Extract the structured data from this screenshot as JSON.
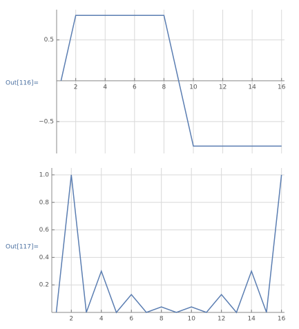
{
  "chart_data": [
    {
      "type": "line",
      "output_label": "Out[116]=",
      "x": [
        1,
        2,
        3,
        4,
        5,
        6,
        7,
        8,
        9,
        10,
        11,
        12,
        13,
        14,
        15,
        16
      ],
      "series": [
        {
          "color": "#5a7db1",
          "values": [
            0,
            0.8,
            0.8,
            0.8,
            0.8,
            0.8,
            0.8,
            0.8,
            0,
            -0.8,
            -0.8,
            -0.8,
            -0.8,
            -0.8,
            -0.8,
            -0.8
          ]
        }
      ],
      "xlim": [
        0.7,
        16.2
      ],
      "ylim": [
        -0.89,
        0.87
      ],
      "xticks": [
        2,
        4,
        6,
        8,
        10,
        12,
        14,
        16
      ],
      "yticks": [
        0.5,
        {
          "value": -0.5,
          "label": "−0.5"
        }
      ],
      "grid": true
    },
    {
      "type": "line",
      "output_label": "Out[117]=",
      "x": [
        1,
        2,
        3,
        4,
        5,
        6,
        7,
        8,
        9,
        10,
        11,
        12,
        13,
        14,
        15,
        16
      ],
      "series": [
        {
          "color": "#5a7db1",
          "values": [
            0,
            1.0,
            0,
            0.3,
            0,
            0.13,
            0,
            0.04,
            0,
            0.04,
            0,
            0.13,
            0,
            0.3,
            0,
            1.0
          ]
        }
      ],
      "xlim": [
        0.7,
        16.2
      ],
      "ylim": [
        0,
        1.05
      ],
      "xticks": [
        2,
        4,
        6,
        8,
        10,
        12,
        14,
        16
      ],
      "yticks": [
        0.2,
        0.4,
        0.6,
        {
          "value": 0.8,
          "label": "0.8"
        },
        {
          "value": 1,
          "label": "1.0"
        }
      ],
      "grid": true
    }
  ]
}
